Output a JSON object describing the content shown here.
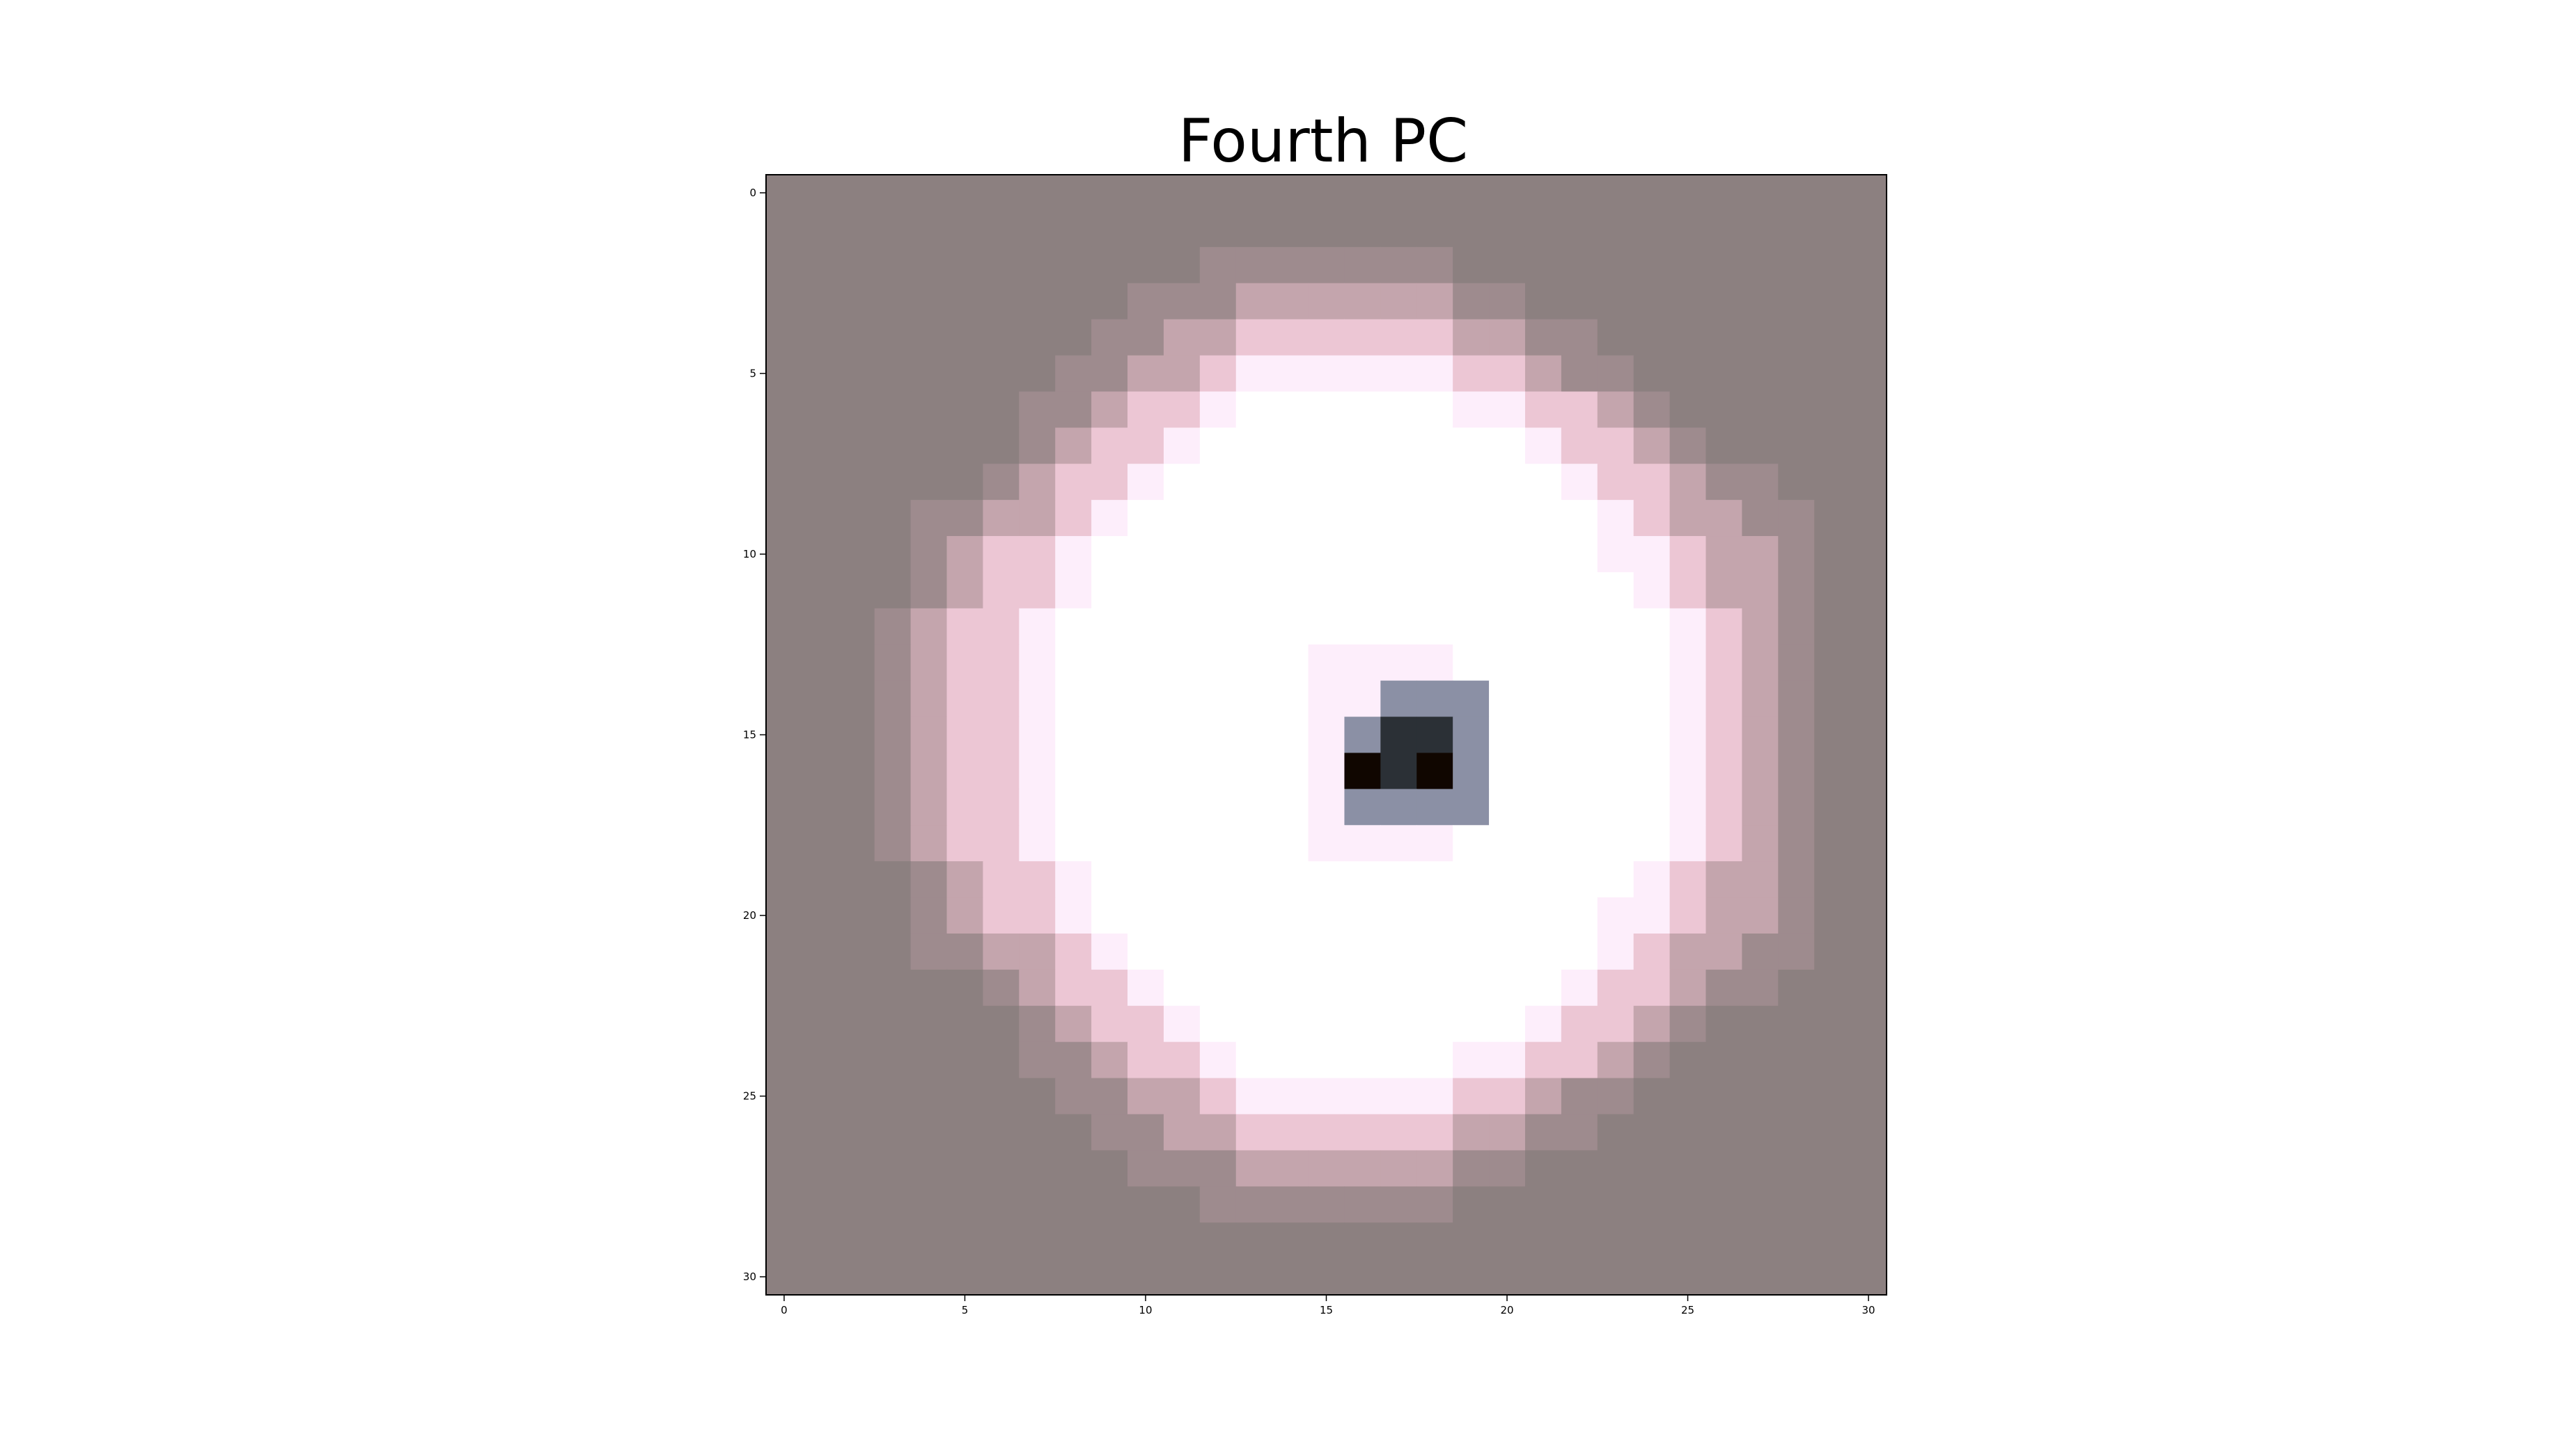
{
  "chart_data": {
    "type": "heatmap",
    "title": "Fourth PC",
    "xlabel": "",
    "ylabel": "",
    "shape": [
      31,
      31
    ],
    "x_ticks": [
      0,
      5,
      10,
      15,
      20,
      25,
      30
    ],
    "y_ticks": [
      0,
      5,
      10,
      15,
      20,
      25,
      30
    ],
    "xlim": [
      -0.5,
      30.5
    ],
    "ylim": [
      30.5,
      -0.5
    ],
    "grid": false,
    "colorbar": false,
    "colormap": "vanimo-like diverging (dark = negative/positive extremes, white = center)",
    "levels": {
      "0": "#8c8080",
      "1": "#9e8b8e",
      "2": "#c4a5ad",
      "3": "#ecc6d4",
      "4": "#fdeefb",
      "5": "#ffffff",
      "6": "#8b90a5",
      "7": "#2b3036",
      "8": "#100600"
    },
    "rows": [
      "0000000000000000000000000000000",
      "0000000000000000000000000000000",
      "0000000000001111111000000000000",
      "0000000000111222222110000000000",
      "0000000001122333333221100000000",
      "0000000011223444444332110000000",
      "0000000112334555555443321000000",
      "0000000123345555555554332100000",
      "0000001233455555555555433211000",
      "0000112234555555555555543221100",
      "0000123345555555555555544322100",
      "0000123345555555555555554322100",
      "0001233455555555555555555432100",
      "0001233455555554444555555432100",
      "0001233455555554466655555432100",
      "0001233455555554677655555432100",
      "0001233455555554878655555432100",
      "0001233455555554666655555432100",
      "0001233455555554444555555432100",
      "0000123345555555555555554322100",
      "0000123345555555555555544322100",
      "0000112234555555555555543221100",
      "0000001233455555555555433211000",
      "0000000123345555555554332100000",
      "0000000112334555555443321000000",
      "0000000011223444444332110000000",
      "0000000001122333333221100000000",
      "0000000000111222222110000000000",
      "0000000000001111111000000000000",
      "0000000000000000000000000000000",
      "0000000000000000000000000000000"
    ]
  }
}
